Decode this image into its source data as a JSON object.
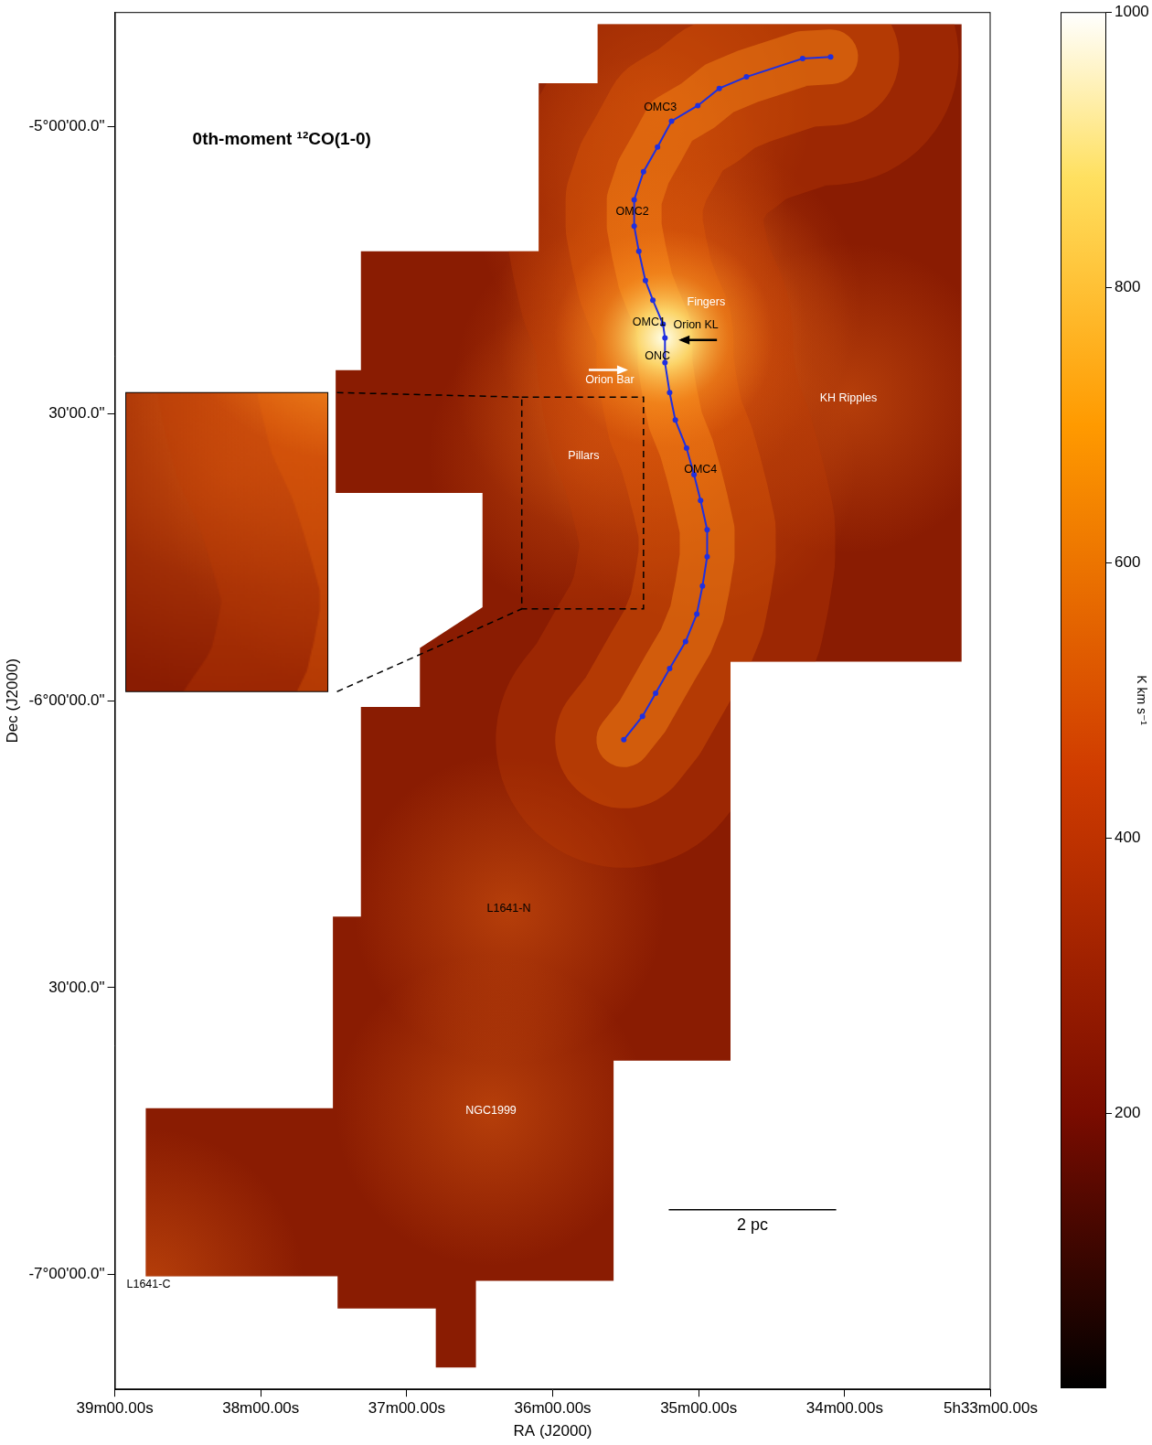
{
  "chart_data": {
    "type": "scatter",
    "title": "0th-moment ¹²CO(1-0)",
    "x_label": "RA (J2000)",
    "y_label": "Dec (J2000)",
    "xlim": [
      39,
      33
    ],
    "xticks": [
      {
        "value": 39,
        "label": "39m00.00s"
      },
      {
        "value": 38,
        "label": "38m00.00s"
      },
      {
        "value": 37,
        "label": "37m00.00s"
      },
      {
        "value": 36,
        "label": "36m00.00s"
      },
      {
        "value": 35,
        "label": "35m00.00s"
      },
      {
        "value": 34,
        "label": "34m00.00s"
      },
      {
        "value": 33,
        "label": "5h33m00.00s"
      }
    ],
    "ylim": [
      -7.2,
      -4.8
    ],
    "yticks": [
      {
        "value": -5,
        "label": "-5°00'00.0\""
      },
      {
        "value": -5.5,
        "label": "30'00.0\""
      },
      {
        "value": -6,
        "label": "-6°00'00.0\""
      },
      {
        "value": -6.5,
        "label": "30'00.0\""
      },
      {
        "value": -7,
        "label": "-7°00'00.0\""
      }
    ],
    "grid": false,
    "legend": false,
    "series": [
      {
        "color": "#1f2fe0",
        "marker": "circle",
        "line_style": "solid",
        "x": [
          34.096,
          34.288,
          34.673,
          34.859,
          35.006,
          35.186,
          35.282,
          35.378,
          35.442,
          35.442,
          35.41,
          35.365,
          35.314,
          35.244,
          35.231,
          35.231,
          35.199,
          35.16,
          35.083,
          35.032,
          34.987,
          34.942,
          34.942,
          34.974,
          35.013,
          35.09,
          35.199,
          35.295,
          35.385,
          35.513
        ],
        "y": [
          -4.878,
          -4.881,
          -4.913,
          -4.933,
          -4.963,
          -4.99,
          -5.035,
          -5.078,
          -5.127,
          -5.173,
          -5.217,
          -5.268,
          -5.302,
          -5.344,
          -5.368,
          -5.411,
          -5.463,
          -5.511,
          -5.56,
          -5.606,
          -5.651,
          -5.702,
          -5.749,
          -5.8,
          -5.849,
          -5.897,
          -5.944,
          -5.987,
          -6.027,
          -6.068
        ]
      }
    ],
    "coverage": [
      [
        35.692,
        -4.821
      ],
      [
        33.199,
        -4.821
      ],
      [
        33.199,
        -5.932
      ],
      [
        34.782,
        -5.932
      ],
      [
        34.782,
        -6.627
      ],
      [
        35.583,
        -6.627
      ],
      [
        35.583,
        -7.011
      ],
      [
        36.526,
        -7.011
      ],
      [
        36.526,
        -7.162
      ],
      [
        36.801,
        -7.162
      ],
      [
        36.801,
        -7.059
      ],
      [
        37.474,
        -7.059
      ],
      [
        37.474,
        -7.003
      ],
      [
        38.788,
        -7.003
      ],
      [
        38.788,
        -6.71
      ],
      [
        37.506,
        -6.71
      ],
      [
        37.506,
        -6.376
      ],
      [
        37.314,
        -6.376
      ],
      [
        37.314,
        -6.011
      ],
      [
        36.91,
        -6.011
      ],
      [
        36.91,
        -5.908
      ],
      [
        36.481,
        -5.837
      ],
      [
        36.481,
        -5.638
      ],
      [
        37.487,
        -5.638
      ],
      [
        37.487,
        -5.424
      ],
      [
        37.314,
        -5.424
      ],
      [
        37.314,
        -5.217
      ],
      [
        36.096,
        -5.217
      ],
      [
        36.096,
        -4.924
      ],
      [
        35.692,
        -4.924
      ]
    ],
    "annotations": [
      {
        "text": "OMC3",
        "ra": 35.263,
        "dec": -4.967,
        "color": "#000000"
      },
      {
        "text": "OMC2",
        "ra": 35.455,
        "dec": -5.148,
        "color": "#000000"
      },
      {
        "text": "Fingers",
        "ra": 34.949,
        "dec": -5.305,
        "color": "#ffffff"
      },
      {
        "text": "OMC1",
        "ra": 35.34,
        "dec": -5.34,
        "color": "#000000"
      },
      {
        "text": "Orion KL",
        "ra": 35.019,
        "dec": -5.346,
        "color": "#000000",
        "marker": "arrow_left"
      },
      {
        "text": "ONC",
        "ra": 35.282,
        "dec": -5.4,
        "color": "#000000"
      },
      {
        "text": "Orion Bar",
        "ra": 35.609,
        "dec": -5.441,
        "color": "#ffffff",
        "marker": "arrow_right"
      },
      {
        "text": "KH Ripples",
        "ra": 33.974,
        "dec": -5.473,
        "color": "#ffffff"
      },
      {
        "text": "Pillars",
        "ra": 35.788,
        "dec": -5.573,
        "color": "#ffffff"
      },
      {
        "text": "OMC4",
        "ra": 34.987,
        "dec": -5.598,
        "color": "#000000"
      },
      {
        "text": "L1641-N",
        "ra": 36.301,
        "dec": -6.363,
        "color": "#000000"
      },
      {
        "text": "NGC1999",
        "ra": 36.423,
        "dec": -6.714,
        "color": "#ffffff"
      },
      {
        "text": "L1641-C",
        "ra": 38.769,
        "dec": -7.017,
        "color": "#000000"
      }
    ],
    "zoom_box": {
      "ra": [
        36.212,
        35.378
      ],
      "dec": [
        -5.471,
        -5.84
      ]
    },
    "scalebar": {
      "label": "2 pc",
      "ra": [
        35.205,
        34.058
      ],
      "dec": -6.887
    },
    "colorbar": {
      "label": "K km s⁻¹",
      "range": [
        0,
        1000
      ],
      "ticks": [
        200,
        400,
        600,
        800,
        1000
      ]
    }
  }
}
